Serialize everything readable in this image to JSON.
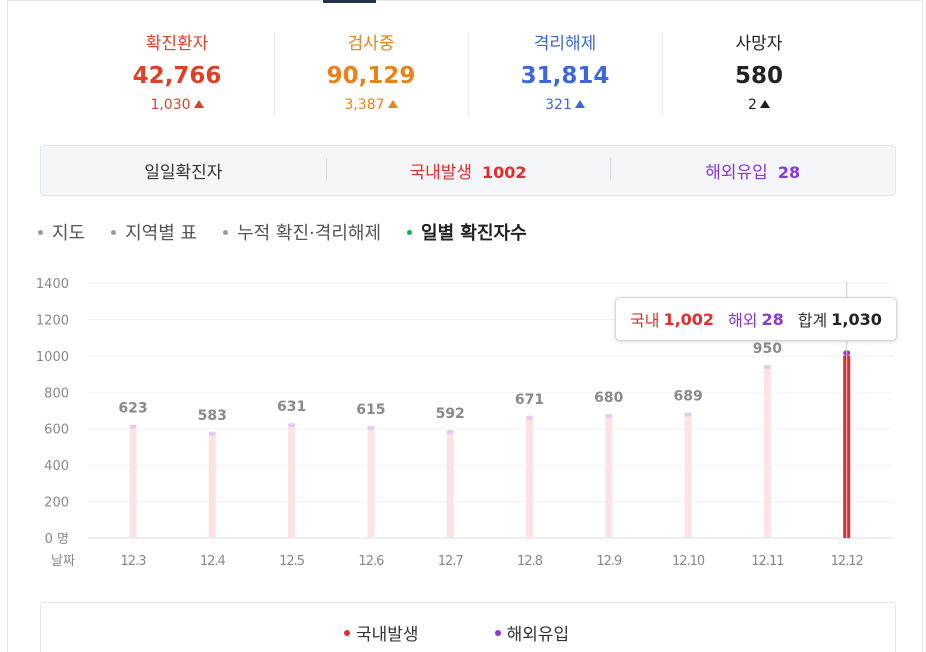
{
  "colors": {
    "confirmed": "#e0402a",
    "testing": "#e8821a",
    "released": "#3d68d8",
    "deaths": "#222222",
    "domestic": "#e32c2c",
    "overseas": "#8a38d8",
    "bar_faded": "#fde3e3",
    "bar_cap": "#e5c9f5"
  },
  "stats": [
    {
      "label": "확진환자",
      "value": "42,766",
      "delta": "1,030"
    },
    {
      "label": "검사중",
      "value": "90,129",
      "delta": "3,387"
    },
    {
      "label": "격리해제",
      "value": "31,814",
      "delta": "321"
    },
    {
      "label": "사망자",
      "value": "580",
      "delta": "2"
    }
  ],
  "daily": {
    "title": "일일확진자",
    "domestic_label": "국내발생",
    "domestic_value": "1002",
    "overseas_label": "해외유입",
    "overseas_value": "28"
  },
  "tabs": [
    {
      "label": "지도",
      "active": false
    },
    {
      "label": "지역별 표",
      "active": false
    },
    {
      "label": "누적 확진·격리해제",
      "active": false
    },
    {
      "label": "일별 확진자수",
      "active": true
    }
  ],
  "chart_data": {
    "type": "bar",
    "categories": [
      "12.3",
      "12.4",
      "12.5",
      "12.6",
      "12.7",
      "12.8",
      "12.9",
      "12.10",
      "12.11",
      "12.12"
    ],
    "series": [
      {
        "name": "국내발생",
        "values": [
          null,
          null,
          null,
          null,
          null,
          null,
          null,
          null,
          null,
          1002
        ]
      },
      {
        "name": "해외유입",
        "values": [
          null,
          null,
          null,
          null,
          null,
          null,
          null,
          null,
          null,
          28
        ]
      }
    ],
    "totals": [
      623,
      583,
      631,
      615,
      592,
      671,
      680,
      689,
      950,
      1030
    ],
    "value_labels": [
      "623",
      "583",
      "631",
      "615",
      "592",
      "671",
      "680",
      "689",
      "950",
      ""
    ],
    "highlight_index": 9,
    "yticks": [
      "0 명",
      "200",
      "400",
      "600",
      "800",
      "1000",
      "1200",
      "1400"
    ],
    "xlabel": "날짜",
    "ylim": [
      0,
      1400
    ],
    "legend": [
      "국내발생",
      "해외유입"
    ],
    "legend_position": "bottom",
    "grid": true
  },
  "tooltip": {
    "domestic_label": "국내",
    "domestic_value": "1,002",
    "overseas_label": "해외",
    "overseas_value": "28",
    "total_label": "합계",
    "total_value": "1,030"
  }
}
